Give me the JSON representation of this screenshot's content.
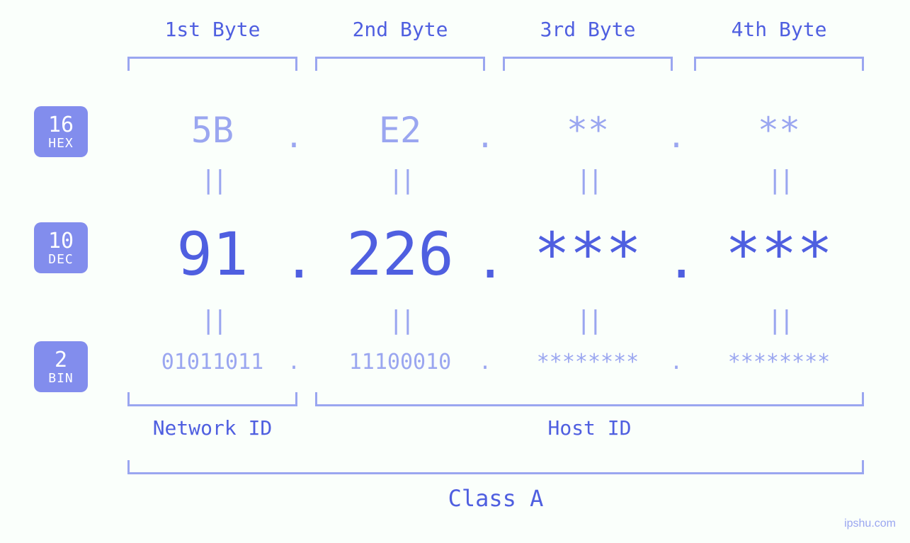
{
  "diagram": {
    "type": "ip-address-breakdown",
    "colors": {
      "background": "#fafffb",
      "primary": "#4f5fe0",
      "light": "#9aa6f0",
      "badge": "#828ded",
      "badge_text": "#ffffff"
    },
    "byte_labels": [
      "1st Byte",
      "2nd Byte",
      "3rd Byte",
      "4th Byte"
    ],
    "rows": {
      "hex": {
        "base": "16",
        "name": "HEX",
        "values": [
          "5B",
          "E2",
          "**",
          "**"
        ],
        "fontsize": 50
      },
      "dec": {
        "base": "10",
        "name": "DEC",
        "values": [
          "91",
          "226",
          "***",
          "***"
        ],
        "fontsize": 84
      },
      "bin": {
        "base": "2",
        "name": "BIN",
        "values": [
          "01011011",
          "11100010",
          "********",
          "********"
        ],
        "fontsize": 30
      }
    },
    "equals_glyph": "||",
    "dot": ".",
    "groups": {
      "network": "Network ID",
      "host": "Host ID",
      "class": "Class A"
    },
    "watermark": "ipshu.com"
  }
}
